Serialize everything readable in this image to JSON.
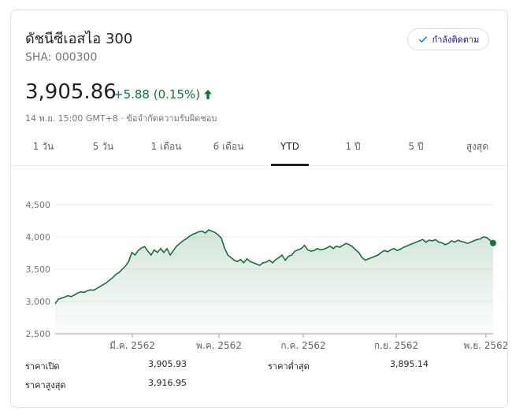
{
  "header": {
    "title": "ดัชนีซีเอสไอ 300",
    "ticker": "SHA: 000300",
    "follow_label": "กำลังติดตาม"
  },
  "quote": {
    "price": "3,905.86",
    "change": "+5.88 (0.15%)",
    "timestamp": "14 พ.ย. 15:00 GMT+8 ·",
    "disclaimer": "ข้อจำกัดความรับผิดชอบ",
    "accent_color": "#137333"
  },
  "tabs": [
    {
      "label": "1 วัน"
    },
    {
      "label": "5 วัน"
    },
    {
      "label": "1 เดือน"
    },
    {
      "label": "6 เดือน"
    },
    {
      "label": "YTD",
      "selected": true
    },
    {
      "label": "1 ปี"
    },
    {
      "label": "5 ปี"
    },
    {
      "label": "สูงสุด"
    }
  ],
  "chart_data": {
    "type": "area",
    "y_ticks": [
      "4,500",
      "4,000",
      "3,500",
      "3,000",
      "2,500"
    ],
    "ylim": [
      2500,
      4500
    ],
    "x_ticks": [
      "มี.ค. 2562",
      "พ.ค. 2562",
      "ก.ค. 2562",
      "ก.ย. 2562",
      "พ.ย. 2562"
    ],
    "line_color": "#137333",
    "grid": true,
    "series": [
      {
        "values": [
          2965,
          3035,
          3052,
          3070,
          3090,
          3075,
          3100,
          3130,
          3150,
          3140,
          3165,
          3180,
          3175,
          3200,
          3230,
          3260,
          3290,
          3330,
          3370,
          3420,
          3450,
          3500,
          3550,
          3620,
          3760,
          3720,
          3790,
          3830,
          3850,
          3780,
          3720,
          3800,
          3760,
          3820,
          3760,
          3820,
          3720,
          3790,
          3860,
          3900,
          3940,
          3970,
          4010,
          4040,
          4060,
          4080,
          4090,
          4060,
          4110,
          4090,
          4070,
          4030,
          3980,
          3830,
          3720,
          3680,
          3640,
          3620,
          3650,
          3600,
          3660,
          3620,
          3600,
          3580,
          3560,
          3600,
          3610,
          3640,
          3600,
          3650,
          3680,
          3720,
          3640,
          3700,
          3720,
          3780,
          3800,
          3820,
          3870,
          3800,
          3780,
          3790,
          3820,
          3800,
          3810,
          3830,
          3860,
          3820,
          3860,
          3840,
          3870,
          3900,
          3880,
          3850,
          3800,
          3760,
          3680,
          3640,
          3660,
          3680,
          3700,
          3720,
          3760,
          3790,
          3770,
          3800,
          3820,
          3790,
          3810,
          3840,
          3860,
          3880,
          3900,
          3920,
          3940,
          3960,
          3920,
          3950,
          3940,
          3960,
          3920,
          3910,
          3880,
          3900,
          3940,
          3920,
          3950,
          3930,
          3920,
          3900,
          3920,
          3940,
          3960,
          3970,
          4000,
          3990,
          3950,
          3905
        ]
      }
    ]
  },
  "stats": {
    "open_label": "ราคาเปิด",
    "open_value": "3,905.93",
    "high_label": "ราคาสูงสุด",
    "high_value": "3,916.95",
    "low_label": "ราคาต่ำสุด",
    "low_value": "3,895.14"
  }
}
